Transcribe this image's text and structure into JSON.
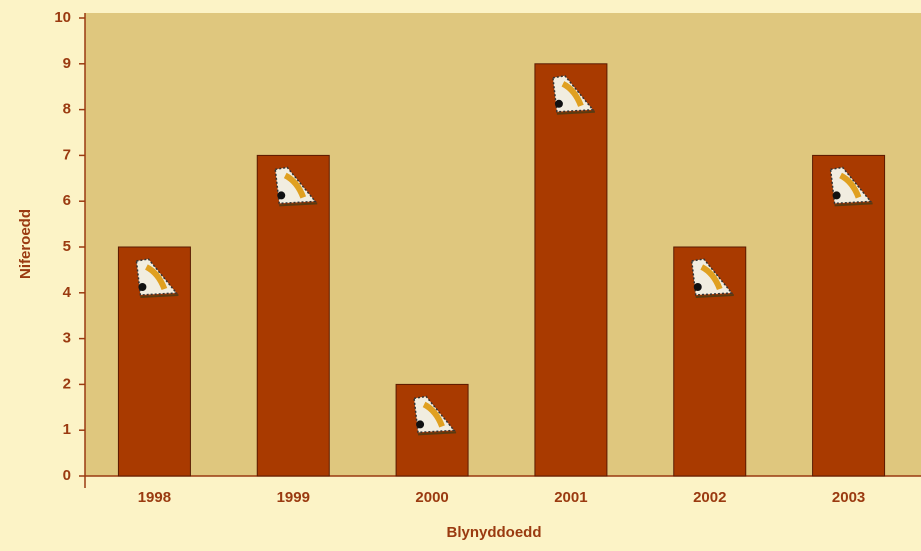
{
  "chart_data": {
    "type": "bar",
    "x_label": "Blynyddoedd",
    "y_label": "Niferoedd",
    "categories": [
      "1998",
      "1999",
      "2000",
      "2001",
      "2002",
      "2003"
    ],
    "values": [
      5,
      7,
      2,
      9,
      5,
      7
    ],
    "color": "#a93a00",
    "ylim": [
      0,
      10
    ],
    "yticks": [
      0,
      1,
      2,
      3,
      4,
      5,
      6,
      7,
      8,
      9,
      10
    ]
  }
}
